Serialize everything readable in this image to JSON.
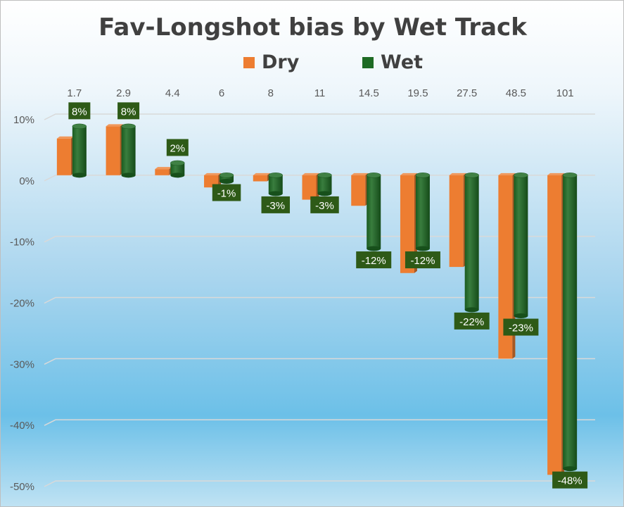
{
  "chart_data": {
    "type": "bar",
    "title": "Fav-Longshot bias by Wet Track",
    "categories": [
      "1.7",
      "2.9",
      "4.4",
      "6",
      "8",
      "11",
      "14.5",
      "19.5",
      "27.5",
      "48.5",
      "101"
    ],
    "series": [
      {
        "name": "Dry",
        "color": "#ED7D31",
        "values": [
          6,
          8,
          1,
          -2,
          -1,
          -4,
          -5,
          -16,
          -15,
          -30,
          -49
        ]
      },
      {
        "name": "Wet",
        "color": "#1E6B24",
        "values": [
          8,
          8,
          2,
          -1,
          -3,
          -3,
          -12,
          -12,
          -22,
          -23,
          -48
        ],
        "data_labels": [
          "8%",
          "8%",
          "2%",
          "-1%",
          "-3%",
          "-3%",
          "-12%",
          "-12%",
          "-22%",
          "-23%",
          "-48%"
        ]
      }
    ],
    "y_tick_labels": [
      "10%",
      "0%",
      "-10%",
      "-20%",
      "-30%",
      "-40%",
      "-50%"
    ],
    "y_ticks": [
      10,
      0,
      -10,
      -20,
      -30,
      -40,
      -50
    ],
    "ylim": [
      -50,
      10
    ],
    "grid": true,
    "legend_position": "top",
    "category_axis_position": "top"
  }
}
